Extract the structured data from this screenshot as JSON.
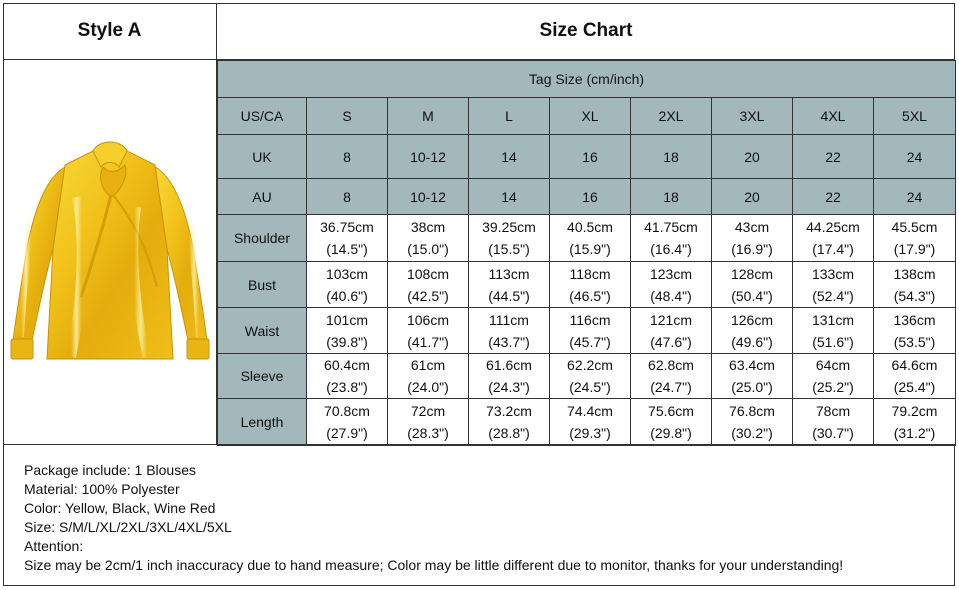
{
  "header": {
    "style_label": "Style A",
    "chart_title": "Size Chart"
  },
  "product": {
    "image_icon": "yellow-satin-blouse",
    "color": "#f2c21a"
  },
  "colors": {
    "header_bg": "#a3b8bb",
    "border": "#333333"
  },
  "table": {
    "tag_size_label": "Tag Size (cm/inch)",
    "size_rows": [
      {
        "label": "US/CA",
        "values": [
          "S",
          "M",
          "L",
          "XL",
          "2XL",
          "3XL",
          "4XL",
          "5XL"
        ]
      },
      {
        "label": "UK",
        "values": [
          "8",
          "10-12",
          "14",
          "16",
          "18",
          "20",
          "22",
          "24"
        ]
      },
      {
        "label": "AU",
        "values": [
          "8",
          "10-12",
          "14",
          "16",
          "18",
          "20",
          "22",
          "24"
        ]
      }
    ],
    "measure_rows": [
      {
        "label": "Shoulder",
        "cm": [
          "36.75cm",
          "38cm",
          "39.25cm",
          "40.5cm",
          "41.75cm",
          "43cm",
          "44.25cm",
          "45.5cm"
        ],
        "inch": [
          "(14.5\")",
          "(15.0\")",
          "(15.5\")",
          "(15.9\")",
          "(16.4\")",
          "(16.9\")",
          "(17.4\")",
          "(17.9\")"
        ]
      },
      {
        "label": "Bust",
        "cm": [
          "103cm",
          "108cm",
          "113cm",
          "118cm",
          "123cm",
          "128cm",
          "133cm",
          "138cm"
        ],
        "inch": [
          "(40.6\")",
          "(42.5\")",
          "(44.5\")",
          "(46.5\")",
          "(48.4\")",
          "(50.4\")",
          "(52.4\")",
          "(54.3\")"
        ]
      },
      {
        "label": "Waist",
        "cm": [
          "101cm",
          "106cm",
          "111cm",
          "116cm",
          "121cm",
          "126cm",
          "131cm",
          "136cm"
        ],
        "inch": [
          "(39.8\")",
          "(41.7\")",
          "(43.7\")",
          "(45.7\")",
          "(47.6\")",
          "(49.6\")",
          "(51.6\")",
          "(53.5\")"
        ]
      },
      {
        "label": "Sleeve",
        "cm": [
          "60.4cm",
          "61cm",
          "61.6cm",
          "62.2cm",
          "62.8cm",
          "63.4cm",
          "64cm",
          "64.6cm"
        ],
        "inch": [
          "(23.8\")",
          "(24.0\")",
          "(24.3\")",
          "(24.5\")",
          "(24.7\")",
          "(25.0\")",
          "(25.2\")",
          "(25.4\")"
        ]
      },
      {
        "label": "Length",
        "cm": [
          "70.8cm",
          "72cm",
          "73.2cm",
          "74.4cm",
          "75.6cm",
          "76.8cm",
          "78cm",
          "79.2cm"
        ],
        "inch": [
          "(27.9\")",
          "(28.3\")",
          "(28.8\")",
          "(29.3\")",
          "(29.8\")",
          "(30.2\")",
          "(30.7\")",
          "(31.2\")"
        ]
      }
    ]
  },
  "notes": {
    "package": "Package include: 1 Blouses",
    "material": "Material: 100% Polyester",
    "color": "Color: Yellow, Black, Wine Red",
    "size": "Size: S/M/L/XL/2XL/3XL/4XL/5XL",
    "attention": "Attention:",
    "disclaimer": "Size may be 2cm/1 inch inaccuracy due to hand measure; Color may be little different due to monitor, thanks for your understanding!"
  }
}
